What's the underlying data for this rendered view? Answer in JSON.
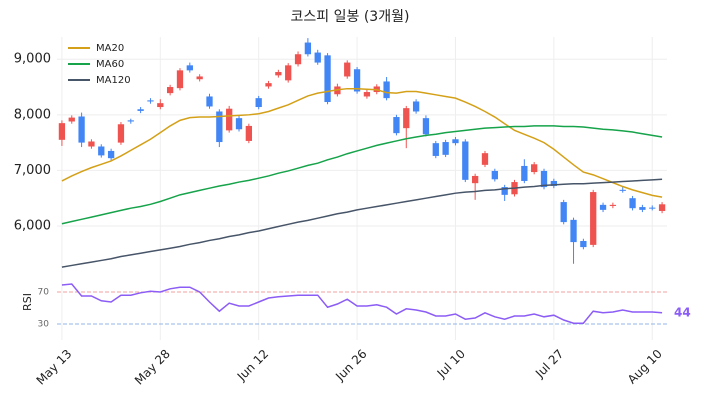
{
  "chart_data": [
    {
      "type": "candlestick",
      "title": "코스피 일봉 (3개월)",
      "categories": [
        "May 13",
        null,
        null,
        null,
        null,
        null,
        null,
        null,
        null,
        null,
        "May 28",
        null,
        null,
        null,
        null,
        null,
        null,
        null,
        null,
        null,
        "Jun 12",
        null,
        null,
        null,
        null,
        null,
        null,
        null,
        null,
        null,
        "Jun 26",
        null,
        null,
        null,
        null,
        null,
        null,
        null,
        null,
        null,
        "Jul 10",
        null,
        null,
        null,
        null,
        null,
        null,
        null,
        null,
        null,
        "Jul 27",
        null,
        null,
        null,
        null,
        null,
        null,
        null,
        null,
        null,
        "Aug 10",
        null
      ],
      "open": [
        7550,
        7880,
        7970,
        7430,
        7430,
        7350,
        7500,
        7900,
        8100,
        8260,
        8140,
        8390,
        8480,
        8890,
        8640,
        8330,
        8060,
        7720,
        7940,
        7530,
        8300,
        8510,
        8710,
        8620,
        8910,
        9300,
        9120,
        9070,
        8370,
        8690,
        8820,
        8330,
        8410,
        8600,
        7960,
        7760,
        8240,
        7940,
        7490,
        7510,
        7560,
        7520,
        6770,
        7100,
        6990,
        6700,
        6570,
        7080,
        6970,
        6990,
        6810,
        6430,
        6110,
        5730,
        5660,
        6380,
        6360,
        6650,
        6500,
        6340,
        6330,
        6270
      ],
      "high": [
        7900,
        7990,
        8040,
        7560,
        7470,
        7390,
        7870,
        7930,
        8140,
        8300,
        8280,
        8540,
        8840,
        8940,
        8730,
        8380,
        8100,
        8160,
        7980,
        7840,
        8340,
        8610,
        8810,
        8930,
        9140,
        9380,
        9170,
        9110,
        8560,
        8980,
        8860,
        8450,
        8550,
        8680,
        8000,
        8160,
        8280,
        7990,
        7530,
        7550,
        7600,
        7560,
        6940,
        7350,
        7030,
        6740,
        6830,
        7200,
        7150,
        7030,
        6850,
        6470,
        6150,
        5770,
        6650,
        6420,
        6420,
        6720,
        6540,
        6380,
        6370,
        6430
      ],
      "low": [
        7440,
        7840,
        7420,
        7390,
        7230,
        7180,
        7460,
        7840,
        8030,
        8200,
        8100,
        8350,
        8440,
        8760,
        8600,
        8110,
        7420,
        7680,
        7700,
        7490,
        8100,
        8470,
        8670,
        8580,
        8870,
        9050,
        8900,
        8190,
        8330,
        8650,
        8380,
        8290,
        8370,
        8260,
        7630,
        7400,
        8020,
        7610,
        7220,
        7240,
        7450,
        6790,
        6470,
        7060,
        6800,
        6450,
        6530,
        6770,
        6930,
        6660,
        6680,
        6030,
        5320,
        5580,
        5620,
        6250,
        6320,
        6600,
        6280,
        6250,
        6280,
        6230
      ],
      "close": [
        7850,
        7950,
        7500,
        7520,
        7270,
        7220,
        7830,
        7880,
        8070,
        8240,
        8210,
        8500,
        8800,
        8800,
        8690,
        8150,
        7510,
        8110,
        7740,
        7800,
        8140,
        8570,
        8770,
        8890,
        9090,
        9090,
        8940,
        8230,
        8510,
        8940,
        8420,
        8410,
        8510,
        8300,
        7670,
        8120,
        8060,
        7650,
        7260,
        7280,
        7490,
        6830,
        6900,
        7310,
        6840,
        6560,
        6790,
        6810,
        7110,
        6700,
        6720,
        6070,
        5710,
        5620,
        6610,
        6290,
        6380,
        6640,
        6320,
        6290,
        6320,
        6390
      ],
      "up_color": "#ef5350",
      "down_color": "#4285f4",
      "series": [
        {
          "name": "MA20",
          "color": "#d4a017",
          "values": [
            6810,
            6900,
            6980,
            7050,
            7110,
            7170,
            7260,
            7360,
            7460,
            7560,
            7680,
            7800,
            7900,
            7950,
            7960,
            7960,
            7970,
            7980,
            7990,
            8000,
            8020,
            8060,
            8120,
            8180,
            8260,
            8340,
            8390,
            8420,
            8450,
            8470,
            8470,
            8460,
            8450,
            8400,
            8390,
            8420,
            8420,
            8390,
            8360,
            8330,
            8300,
            8230,
            8150,
            8060,
            7960,
            7840,
            7720,
            7650,
            7580,
            7500,
            7380,
            7240,
            7100,
            6970,
            6920,
            6850,
            6780,
            6710,
            6650,
            6600,
            6550,
            6520
          ]
        },
        {
          "name": "MA60",
          "color": "#16a34a",
          "values": [
            6040,
            6080,
            6120,
            6160,
            6200,
            6240,
            6280,
            6320,
            6350,
            6390,
            6440,
            6500,
            6560,
            6600,
            6640,
            6680,
            6720,
            6750,
            6790,
            6820,
            6860,
            6900,
            6950,
            6990,
            7040,
            7090,
            7130,
            7190,
            7240,
            7300,
            7350,
            7400,
            7450,
            7490,
            7530,
            7570,
            7600,
            7630,
            7650,
            7680,
            7700,
            7720,
            7740,
            7760,
            7770,
            7780,
            7790,
            7790,
            7800,
            7800,
            7800,
            7790,
            7790,
            7780,
            7760,
            7740,
            7730,
            7710,
            7690,
            7660,
            7630,
            7600
          ]
        },
        {
          "name": "MA120",
          "color": "#475569",
          "values": [
            5260,
            5290,
            5320,
            5350,
            5380,
            5410,
            5450,
            5480,
            5510,
            5540,
            5570,
            5600,
            5630,
            5670,
            5700,
            5740,
            5770,
            5810,
            5840,
            5880,
            5910,
            5950,
            5990,
            6030,
            6070,
            6100,
            6140,
            6180,
            6220,
            6250,
            6290,
            6320,
            6350,
            6380,
            6410,
            6440,
            6470,
            6500,
            6530,
            6560,
            6590,
            6610,
            6620,
            6640,
            6650,
            6670,
            6680,
            6700,
            6710,
            6730,
            6740,
            6750,
            6760,
            6760,
            6770,
            6780,
            6790,
            6800,
            6810,
            6820,
            6830,
            6840
          ]
        }
      ],
      "ylim": [
        5100,
        9400
      ],
      "yticks": [
        {
          "value": 6000,
          "label": "6,000"
        },
        {
          "value": 7000,
          "label": "7,000"
        },
        {
          "value": 8000,
          "label": "8,000"
        },
        {
          "value": 9000,
          "label": "9,000"
        }
      ],
      "grid": true,
      "legend": "upper-left"
    },
    {
      "type": "line",
      "ylabel": "RSI",
      "color": "#8b5cf6",
      "values": [
        78.75,
        80,
        65,
        65,
        59,
        57.5,
        66,
        66,
        69,
        71,
        70,
        74,
        76,
        76,
        70,
        57.5,
        46,
        56,
        52.5,
        52.5,
        57.5,
        62.5,
        64,
        65,
        66,
        66,
        66,
        51,
        55,
        61,
        52.5,
        52.5,
        54,
        51,
        42.5,
        49,
        47.5,
        45,
        40,
        40,
        42.5,
        36,
        37.5,
        44,
        39,
        36,
        40,
        40,
        42.5,
        39,
        41,
        35,
        31,
        31,
        46,
        44,
        45,
        47.5,
        45,
        45,
        45,
        44
      ],
      "ylim": [
        10,
        85
      ],
      "yticks": [
        30,
        70
      ],
      "hline_colors": [
        "#93b4e8",
        "#f0a0a0"
      ]
    }
  ]
}
